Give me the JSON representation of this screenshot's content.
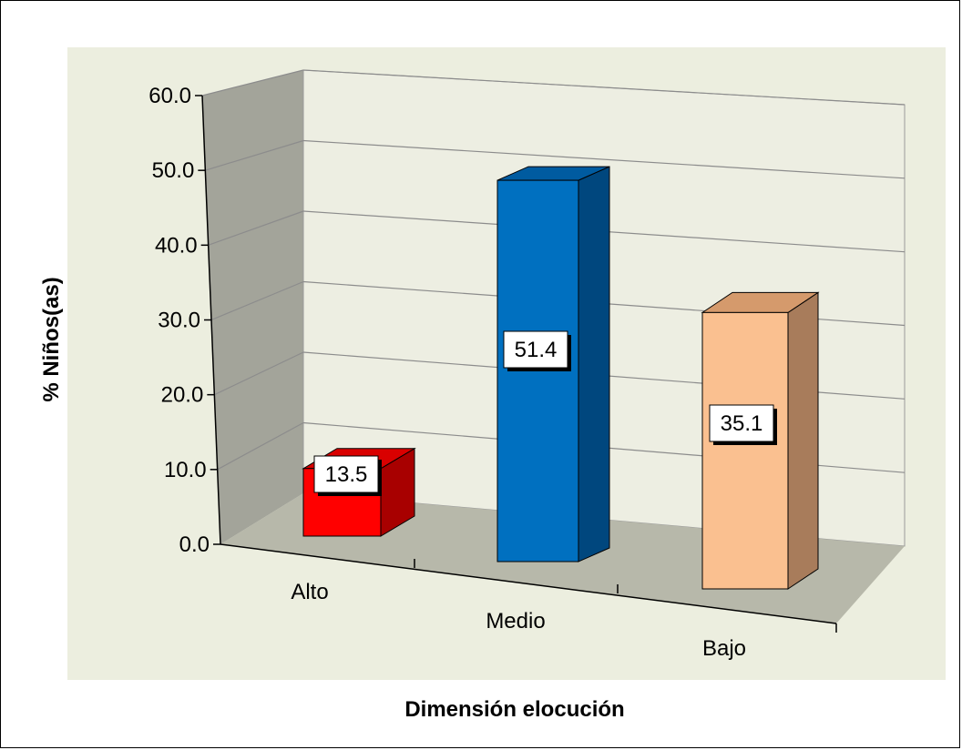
{
  "chart_data": {
    "type": "bar",
    "categories": [
      "Alto",
      "Medio",
      "Bajo"
    ],
    "values": [
      13.5,
      51.4,
      35.1
    ],
    "value_labels": [
      "13.5",
      "51.4",
      "35.1"
    ],
    "ylabel": "% Niños(as)",
    "xlabel": "Dimensión elocución",
    "ylim": [
      0,
      60
    ],
    "yticks": [
      "0.0",
      "10.0",
      "20.0",
      "30.0",
      "40.0",
      "50.0",
      "60.0"
    ],
    "grid": true,
    "style": "3d-column",
    "colors": {
      "plot_background": "#ECEEDF",
      "floor": "#B7B8AA",
      "back_wall": "#EDEEE2",
      "side_wall": "#A3A49A",
      "bars": [
        {
          "front": "#FF0000",
          "top": "#D90000",
          "side": "#A80000"
        },
        {
          "front": "#0070C0",
          "top": "#005BA0",
          "side": "#00477E"
        },
        {
          "front": "#FAC090",
          "top": "#D59A6C",
          "side": "#A87C5B"
        }
      ]
    }
  }
}
